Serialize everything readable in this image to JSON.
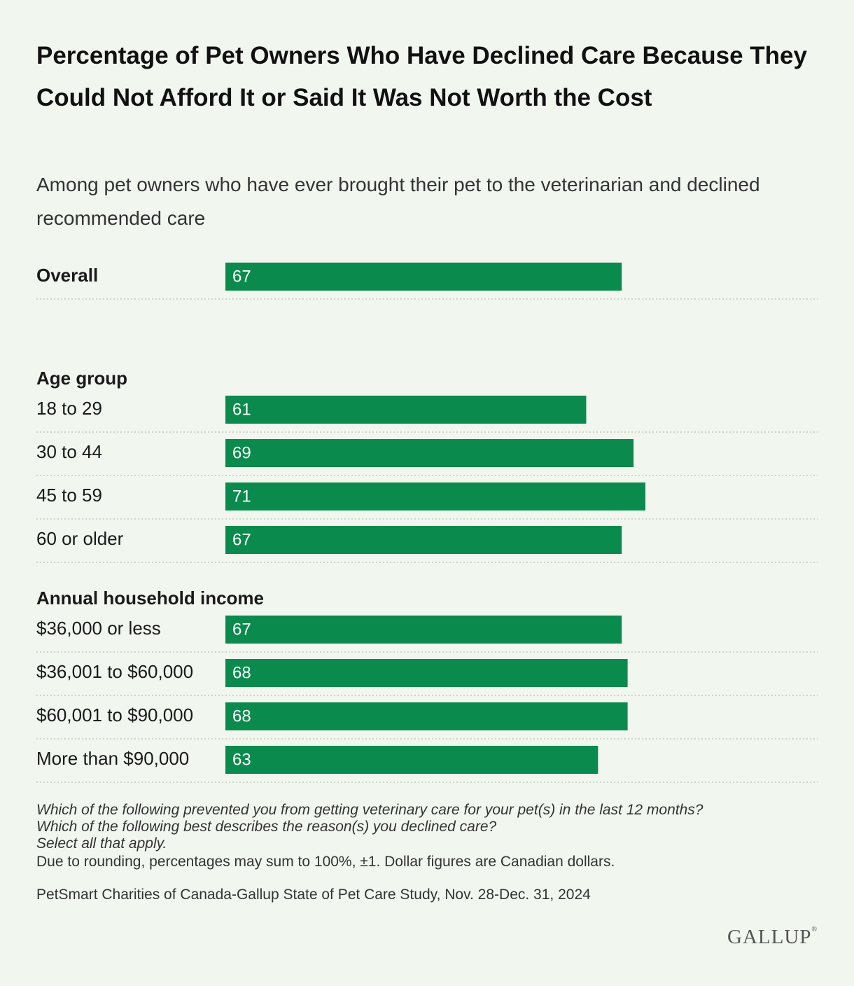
{
  "chart_data": {
    "type": "bar",
    "orientation": "horizontal",
    "title": "Percentage of Pet Owners Who Have Declined Care Because They Could Not Afford It or Said It Was Not Worth the Cost",
    "subtitle": "Among pet owners who have ever brought their pet to the veterinarian and declined recommended care",
    "xlim": [
      0,
      100
    ],
    "bar_color": "#0a8a4c",
    "groups": [
      {
        "header": "",
        "rows": [
          {
            "label": "Overall",
            "value": 67,
            "bold": true
          }
        ]
      },
      {
        "header": "Age group",
        "rows": [
          {
            "label": "18 to 29",
            "value": 61
          },
          {
            "label": "30 to 44",
            "value": 69
          },
          {
            "label": "45 to 59",
            "value": 71
          },
          {
            "label": "60 or older",
            "value": 67
          }
        ]
      },
      {
        "header": "Annual household income",
        "rows": [
          {
            "label": "$36,000 or less",
            "value": 67
          },
          {
            "label": "$36,001 to $60,000",
            "value": 68
          },
          {
            "label": "$60,001 to $90,000",
            "value": 68
          },
          {
            "label": "More than $90,000",
            "value": 63
          }
        ]
      }
    ]
  },
  "notes": {
    "question1": "Which of the following prevented you from getting veterinary care for your pet(s) in the last 12 months?",
    "question2": "Which of the following best describes the reason(s) you declined care?",
    "question3": "Select all that apply.",
    "rounding": "Due to rounding, percentages may sum to 100%, ±1. Dollar figures are Canadian dollars."
  },
  "source": "PetSmart Charities of Canada-Gallup State of Pet Care Study, Nov. 28-Dec. 31, 2024",
  "logo": "GALLUP"
}
